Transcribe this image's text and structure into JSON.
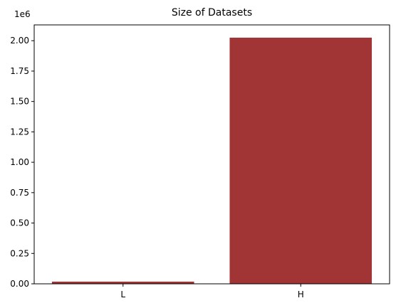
{
  "chart_data": {
    "type": "bar",
    "title": "Size of Datasets",
    "xlabel": "",
    "ylabel": "",
    "categories": [
      "L",
      "H"
    ],
    "values": [
      18000,
      2025000
    ],
    "scale_label": "1e6",
    "ylim": [
      0,
      2130000
    ],
    "yticks": [
      0,
      250000,
      500000,
      750000,
      1000000,
      1250000,
      1500000,
      1750000,
      2000000
    ],
    "ytick_labels": [
      "0.00",
      "0.25",
      "0.50",
      "0.75",
      "1.00",
      "1.25",
      "1.50",
      "1.75",
      "2.00"
    ],
    "bar_color": "#a13535",
    "grid": false,
    "legend": "none"
  }
}
